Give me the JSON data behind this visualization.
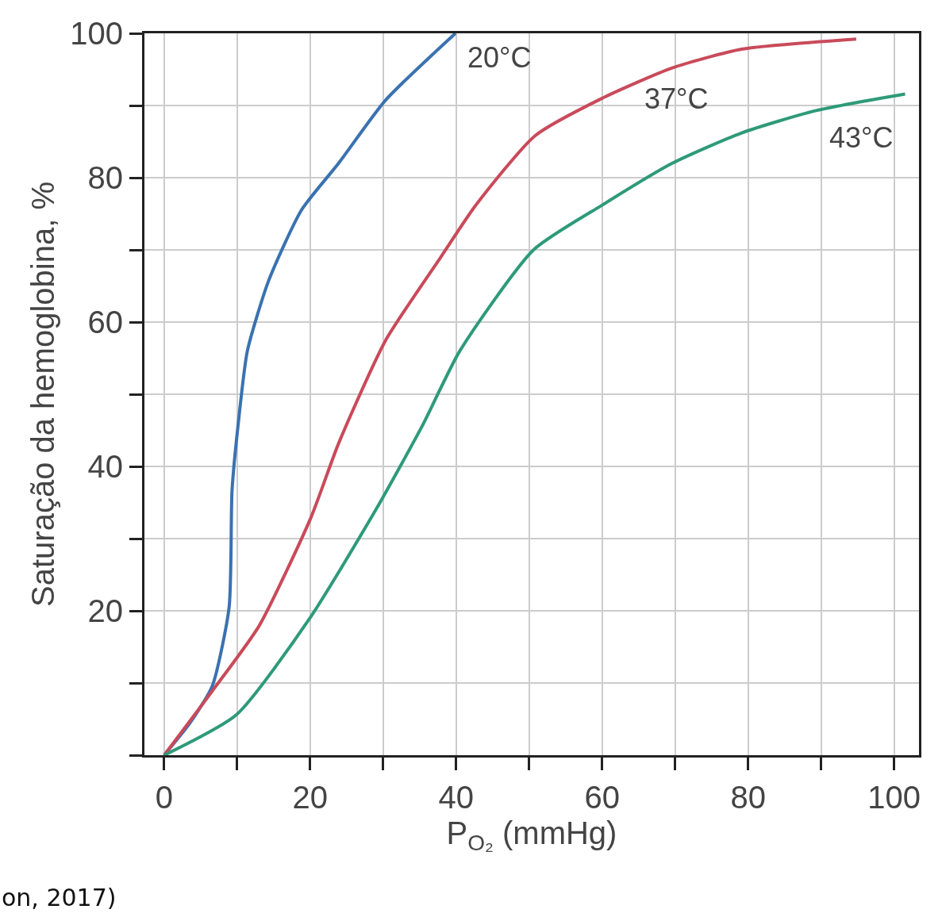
{
  "chart_data": {
    "type": "line",
    "xlabel": "P$_{O₂}$ (mmHg)",
    "ylabel": "Saturação da hemoglobina, %",
    "xlim": [
      -2.7,
      103.4
    ],
    "ylim": [
      0,
      100
    ],
    "xticks": [
      0,
      {
        "value": 10,
        "label": null
      },
      20,
      {
        "value": 30,
        "label": null
      },
      40,
      {
        "value": 50,
        "label": null
      },
      60,
      {
        "value": 70,
        "label": null
      },
      80,
      {
        "value": 90,
        "label": null
      },
      100
    ],
    "yticks": [
      {
        "value": 0,
        "label": null
      },
      {
        "value": 10,
        "label": null
      },
      20,
      {
        "value": 30,
        "label": null
      },
      40,
      {
        "value": 50,
        "label": null
      },
      60,
      {
        "value": 70,
        "label": null
      },
      80,
      {
        "value": 90,
        "label": null
      },
      100
    ],
    "grid": true,
    "legend": false,
    "marker": "none",
    "line_style": "solid",
    "series": [
      {
        "name": "20°C",
        "color": "#3a72b0",
        "x": [
          0,
          3.5,
          6.6,
          8.9,
          9.3,
          10.2,
          11.4,
          14.3,
          18.8,
          23.9,
          30.3,
          39.9
        ],
        "values": [
          0,
          4.4,
          9.6,
          20.5,
          36.7,
          46.4,
          56,
          65.7,
          75.5,
          82,
          90.7,
          100
        ]
      },
      {
        "name": "37°C",
        "color": "#c94a5a",
        "x": [
          0,
          6.6,
          13,
          20.1,
          23.9,
          30.3,
          37.9,
          42.7,
          50.8,
          60,
          69.6,
          79.1,
          94.8
        ],
        "values": [
          0,
          8.9,
          17.9,
          32.9,
          43.2,
          57.4,
          69,
          76.2,
          85.8,
          91,
          95.2,
          97.8,
          99.2
        ]
      },
      {
        "name": "43°C",
        "color": "#2e9a78",
        "x": [
          0,
          9.9,
          20.1,
          29,
          35.4,
          40.5,
          50.6,
          60,
          69.6,
          79.1,
          89.3,
          101.5
        ],
        "values": [
          0,
          5.6,
          19.2,
          34,
          45.7,
          56,
          70,
          76.2,
          82,
          86.2,
          89.3,
          91.6
        ]
      }
    ],
    "annotations": [
      "on, 2017)"
    ]
  }
}
